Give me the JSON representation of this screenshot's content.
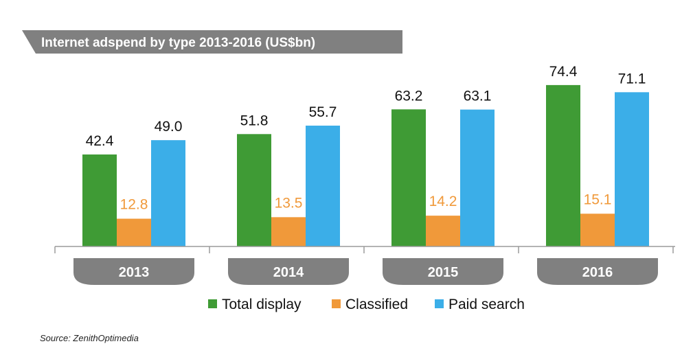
{
  "chart_data": {
    "type": "bar",
    "title": "Internet adspend by type 2013-2016 (US$bn)",
    "categories": [
      "2013",
      "2014",
      "2015",
      "2016"
    ],
    "series": [
      {
        "name": "Total display",
        "color": "#3f9b35",
        "label_color": "#111111",
        "values": [
          42.4,
          51.8,
          63.2,
          74.4
        ],
        "labels": [
          "42.4",
          "51.8",
          "63.2",
          "74.4"
        ]
      },
      {
        "name": "Classified",
        "color": "#f0993a",
        "label_color": "#f0993a",
        "values": [
          12.8,
          13.5,
          14.2,
          15.1
        ],
        "labels": [
          "12.8",
          "13.5",
          "14.2",
          "15.1"
        ]
      },
      {
        "name": "Paid search",
        "color": "#3baee8",
        "label_color": "#111111",
        "values": [
          49.0,
          55.7,
          63.1,
          71.1
        ],
        "labels": [
          "49.0",
          "55.7",
          "63.1",
          "71.1"
        ]
      }
    ],
    "ylim": [
      0,
      80
    ],
    "grid": false,
    "legend_position": "bottom",
    "source": "Source: ZenithOptimedia",
    "colors": {
      "title_bar": "#808080",
      "category_tab": "#808080",
      "axis": "#9a9a9a"
    }
  }
}
